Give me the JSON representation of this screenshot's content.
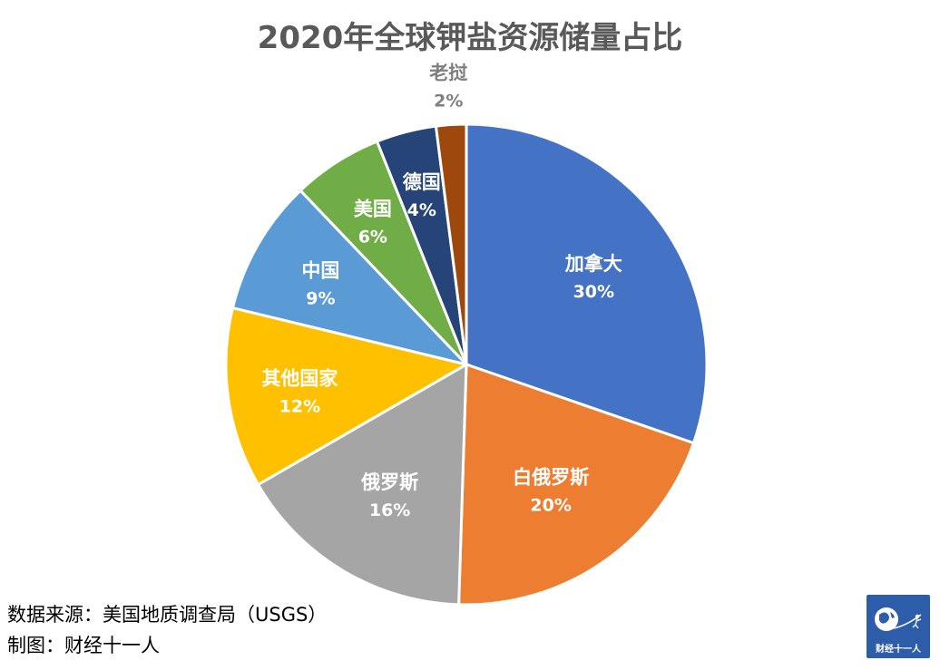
{
  "chart_data": {
    "type": "pie",
    "title": "2020年全球钾盐资源储量占比",
    "slices": [
      {
        "label": "加拿大",
        "value_label": "30%",
        "value": 30,
        "color": "#4472c4"
      },
      {
        "label": "白俄罗斯",
        "value_label": "20%",
        "value": 20,
        "color": "#ed7d31"
      },
      {
        "label": "俄罗斯",
        "value_label": "16%",
        "value": 16,
        "color": "#a5a5a5"
      },
      {
        "label": "其他国家",
        "value_label": "12%",
        "value": 12,
        "color": "#ffc000"
      },
      {
        "label": "中国",
        "value_label": "9%",
        "value": 9,
        "color": "#5b9bd5"
      },
      {
        "label": "美国",
        "value_label": "6%",
        "value": 6,
        "color": "#70ad47"
      },
      {
        "label": "德国",
        "value_label": "4%",
        "value": 4,
        "color": "#264478"
      },
      {
        "label": "老挝",
        "value_label": "2%",
        "value": 2,
        "color": "#9e480e"
      }
    ],
    "start_angle": "12 o'clock",
    "direction": "clockwise",
    "legend": "none"
  },
  "footer": {
    "source": "数据来源：美国地质调查局（USGS）",
    "credit": "制图：财经十一人"
  },
  "logo": {
    "text": "财经十一人"
  }
}
